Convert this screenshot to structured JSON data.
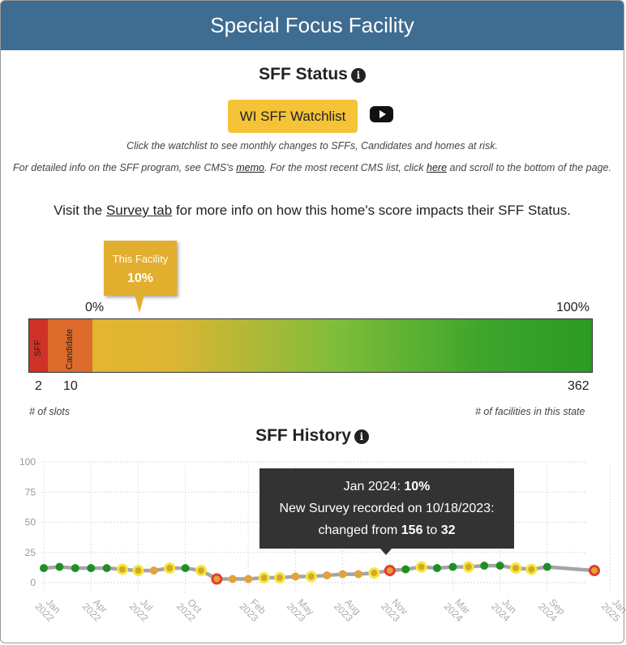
{
  "header": {
    "title": "Special Focus Facility"
  },
  "status": {
    "title": "SFF Status",
    "info_icon": "i",
    "watchlist_button": "WI SFF Watchlist",
    "video_icon": "youtube-icon",
    "hint": "Click the watchlist to see monthly changes to SFFs, Candidates and homes at risk.",
    "detail_pre": "For detailed info on the SFF program, see CMS's ",
    "detail_memo": "memo",
    "detail_mid": ". For the most recent CMS list, click ",
    "detail_here": "here",
    "detail_post": " and scroll to the bottom of the page.",
    "visit_pre": "Visit the ",
    "visit_link": "Survey tab",
    "visit_post": " for more info on how this home's score impacts their SFF Status."
  },
  "gauge": {
    "tooltip_label": "This Facility",
    "tooltip_value": "10%",
    "pct_min": "0%",
    "pct_max": "100%",
    "sff_label": "SFF",
    "candidate_label": "Candidate",
    "slot_sff": "2",
    "slot_candidate": "10",
    "slot_total": "362",
    "slots_caption": "# of slots",
    "facilities_caption": "# of facilities in this state",
    "colors": {
      "sff": "#cf3228",
      "candidate": "#dc6b2c",
      "low": "#e7b530",
      "high": "#2c9a23"
    }
  },
  "history": {
    "title": "SFF History",
    "info_icon": "i",
    "tooltip": {
      "line1_label": "Jan 2024: ",
      "line1_value": "10%",
      "line2": "New Survey recorded on 10/18/2023:",
      "line3_pre": "changed from ",
      "line3_from": "156",
      "line3_mid": " to ",
      "line3_to": "32"
    }
  },
  "chart_data": {
    "type": "line",
    "title": "SFF History",
    "ylim": [
      0,
      100
    ],
    "yticks": [
      0,
      25,
      50,
      75,
      100
    ],
    "xtick_labels": [
      [
        "Jan",
        "2022"
      ],
      [
        "Apr",
        "2022"
      ],
      [
        "Jul",
        "2022"
      ],
      [
        "Oct",
        "2022"
      ],
      [
        "Feb",
        "2023"
      ],
      [
        "May",
        "2023"
      ],
      [
        "Aug",
        "2023"
      ],
      [
        "Nov",
        "2023"
      ],
      [
        "Mar",
        "2024"
      ],
      [
        "Jun",
        "2024"
      ],
      [
        "Sep",
        "2024"
      ],
      [
        "Jan",
        "2025"
      ]
    ],
    "grid": true,
    "line_color": "#a5a5a5",
    "point_colors": {
      "green": "#1f8f23",
      "yellow": "#f2e93a",
      "orange": "#e2a33c",
      "red": "#e63b2e"
    },
    "points": [
      {
        "m": 0,
        "y": 12,
        "c": "green"
      },
      {
        "m": 1,
        "y": 13,
        "c": "green"
      },
      {
        "m": 2,
        "y": 12,
        "c": "green"
      },
      {
        "m": 3,
        "y": 12,
        "c": "green"
      },
      {
        "m": 4,
        "y": 12,
        "c": "green"
      },
      {
        "m": 5,
        "y": 11,
        "c": "yellow"
      },
      {
        "m": 6,
        "y": 10,
        "c": "yellow"
      },
      {
        "m": 7,
        "y": 10,
        "c": "orange"
      },
      {
        "m": 8,
        "y": 12,
        "c": "yellow"
      },
      {
        "m": 9,
        "y": 12,
        "c": "green"
      },
      {
        "m": 10,
        "y": 10,
        "c": "yellow"
      },
      {
        "m": 11,
        "y": 3,
        "c": "red"
      },
      {
        "m": 12,
        "y": 3,
        "c": "orange"
      },
      {
        "m": 13,
        "y": 3,
        "c": "orange"
      },
      {
        "m": 14,
        "y": 4,
        "c": "yellow"
      },
      {
        "m": 15,
        "y": 4,
        "c": "yellow"
      },
      {
        "m": 16,
        "y": 5,
        "c": "orange"
      },
      {
        "m": 17,
        "y": 5,
        "c": "yellow"
      },
      {
        "m": 18,
        "y": 6,
        "c": "orange"
      },
      {
        "m": 19,
        "y": 7,
        "c": "orange"
      },
      {
        "m": 20,
        "y": 7,
        "c": "orange"
      },
      {
        "m": 21,
        "y": 8,
        "c": "yellow"
      },
      {
        "m": 22,
        "y": 10,
        "c": "red"
      },
      {
        "m": 23,
        "y": 11,
        "c": "green"
      },
      {
        "m": 24,
        "y": 13,
        "c": "yellow"
      },
      {
        "m": 25,
        "y": 12,
        "c": "green"
      },
      {
        "m": 26,
        "y": 13,
        "c": "green"
      },
      {
        "m": 27,
        "y": 13,
        "c": "yellow"
      },
      {
        "m": 28,
        "y": 14,
        "c": "green"
      },
      {
        "m": 29,
        "y": 14,
        "c": "green"
      },
      {
        "m": 30,
        "y": 12,
        "c": "yellow"
      },
      {
        "m": 31,
        "y": 11,
        "c": "yellow"
      },
      {
        "m": 32,
        "y": 13,
        "c": "green"
      },
      {
        "m": 35,
        "y": 10,
        "c": "red"
      }
    ]
  }
}
